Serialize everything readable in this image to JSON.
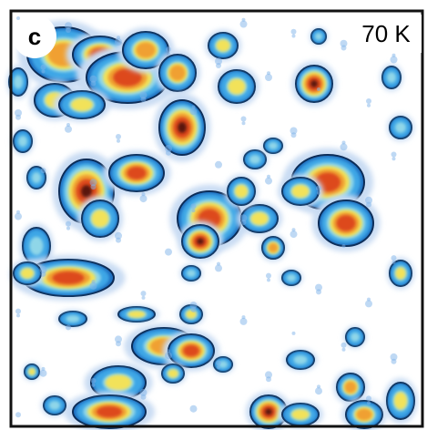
{
  "panel": {
    "label": "c",
    "annotation": "70 K"
  }
}
